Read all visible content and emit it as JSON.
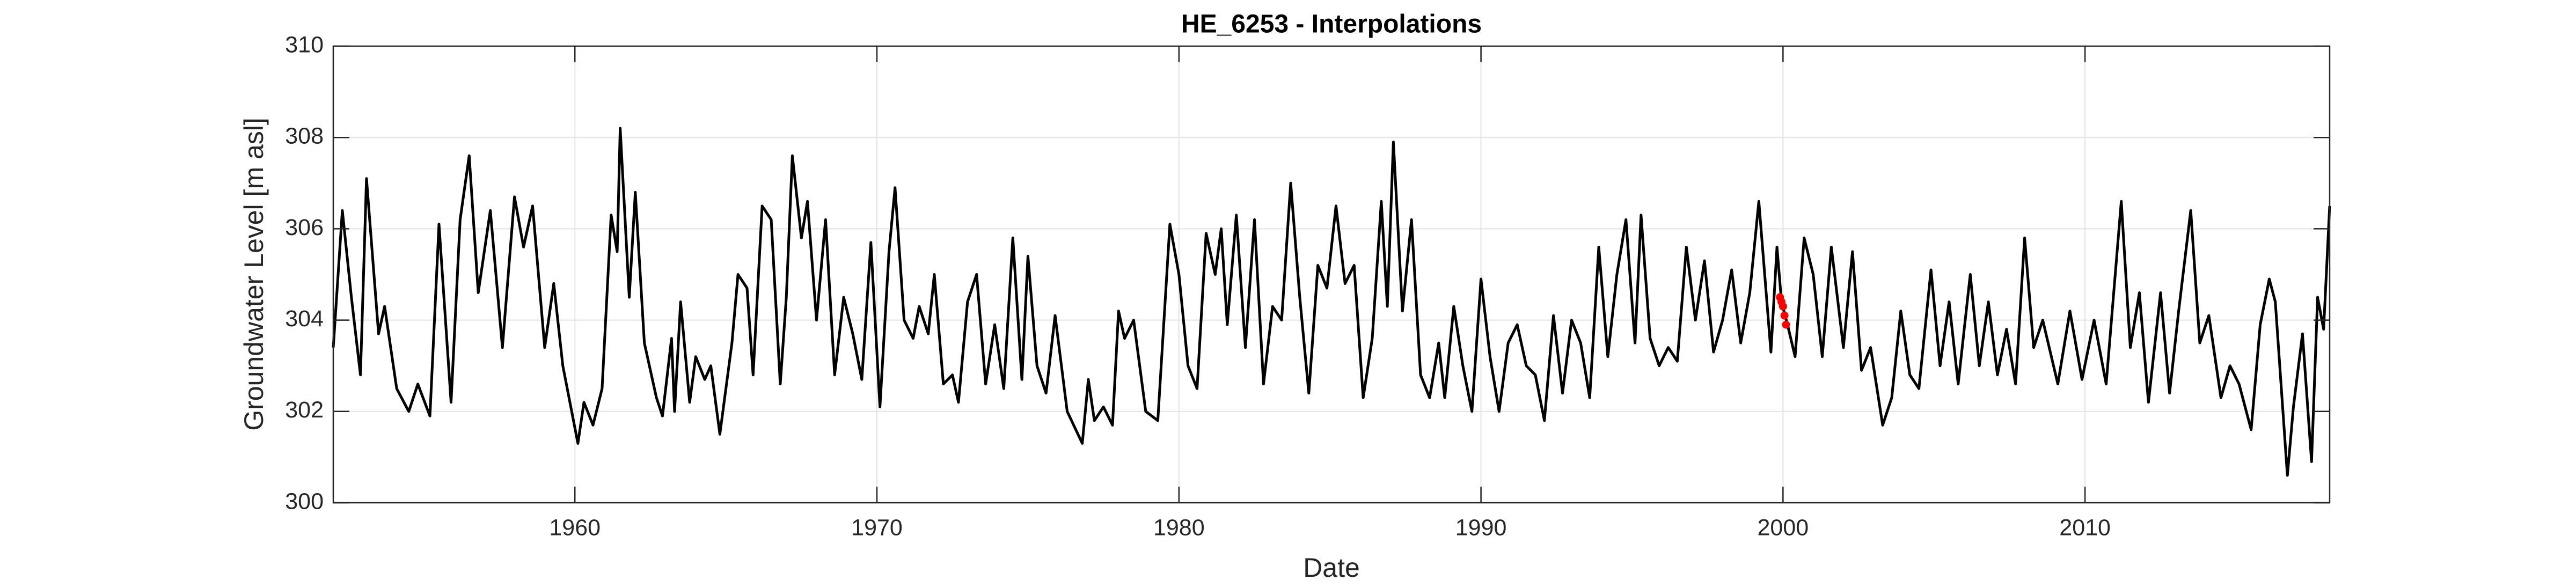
{
  "chart_data": {
    "type": "line",
    "title": "HE_6253 - Interpolations",
    "x_label": "Date",
    "y_label": "Groundwater Level [m asl]",
    "xlim": [
      1952.0,
      2018.1
    ],
    "xticks": [
      1960,
      1970,
      1980,
      1990,
      2000,
      2010
    ],
    "ylim": [
      300,
      310
    ],
    "yticks": [
      300,
      302,
      304,
      306,
      308,
      310
    ],
    "grid": true,
    "series": [
      {
        "color": "#000000",
        "style": "line",
        "x": [
          1952.0,
          1952.3,
          1952.6,
          1952.9,
          1953.1,
          1953.5,
          1953.7,
          1954.1,
          1954.5,
          1954.8,
          1955.2,
          1955.5,
          1955.9,
          1956.2,
          1956.5,
          1956.8,
          1957.2,
          1957.6,
          1958.0,
          1958.3,
          1958.6,
          1959.0,
          1959.3,
          1959.6,
          1960.1,
          1960.3,
          1960.6,
          1960.9,
          1961.2,
          1961.4,
          1961.5,
          1961.8,
          1962.0,
          1962.3,
          1962.7,
          1962.9,
          1963.2,
          1963.3,
          1963.5,
          1963.8,
          1964.0,
          1964.3,
          1964.5,
          1964.8,
          1965.2,
          1965.4,
          1965.7,
          1965.9,
          1966.2,
          1966.5,
          1966.8,
          1967.0,
          1967.2,
          1967.5,
          1967.7,
          1968.0,
          1968.3,
          1968.6,
          1968.9,
          1969.2,
          1969.5,
          1969.8,
          1970.1,
          1970.4,
          1970.6,
          1970.9,
          1971.2,
          1971.4,
          1971.7,
          1971.9,
          1972.2,
          1972.5,
          1972.7,
          1973.0,
          1973.3,
          1973.6,
          1973.9,
          1974.2,
          1974.5,
          1974.8,
          1975.0,
          1975.3,
          1975.6,
          1975.9,
          1976.3,
          1976.8,
          1977.0,
          1977.2,
          1977.5,
          1977.8,
          1978.0,
          1978.2,
          1978.5,
          1978.9,
          1979.3,
          1979.7,
          1980.0,
          1980.3,
          1980.6,
          1980.9,
          1981.2,
          1981.4,
          1981.6,
          1981.9,
          1982.2,
          1982.5,
          1982.8,
          1983.1,
          1983.4,
          1983.7,
          1984.0,
          1984.3,
          1984.6,
          1984.9,
          1985.2,
          1985.5,
          1985.8,
          1986.1,
          1986.4,
          1986.7,
          1986.9,
          1987.1,
          1987.4,
          1987.7,
          1988.0,
          1988.3,
          1988.6,
          1988.8,
          1989.1,
          1989.4,
          1989.7,
          1990.0,
          1990.3,
          1990.6,
          1990.9,
          1991.2,
          1991.5,
          1991.8,
          1992.1,
          1992.4,
          1992.7,
          1993.0,
          1993.3,
          1993.6,
          1993.9,
          1994.2,
          1994.5,
          1994.8,
          1995.1,
          1995.3,
          1995.6,
          1995.9,
          1996.2,
          1996.5,
          1996.8,
          1997.1,
          1997.4,
          1997.7,
          1998.0,
          1998.3,
          1998.6,
          1998.9,
          1999.2,
          1999.6,
          1999.8,
          1999.95,
          2000.15,
          2000.4,
          2000.7,
          2001.0,
          2001.3,
          2001.6,
          2002.0,
          2002.3,
          2002.6,
          2002.9,
          2003.3,
          2003.6,
          2003.9,
          2004.2,
          2004.5,
          2004.9,
          2005.2,
          2005.5,
          2005.8,
          2006.2,
          2006.5,
          2006.8,
          2007.1,
          2007.4,
          2007.7,
          2008.0,
          2008.3,
          2008.6,
          2009.1,
          2009.5,
          2009.9,
          2010.3,
          2010.7,
          2011.2,
          2011.5,
          2011.8,
          2012.1,
          2012.5,
          2012.8,
          2013.1,
          2013.5,
          2013.8,
          2014.1,
          2014.5,
          2014.8,
          2015.1,
          2015.5,
          2015.8,
          2016.1,
          2016.3,
          2016.7,
          2016.9,
          2017.2,
          2017.5,
          2017.7,
          2017.9,
          2018.1
        ],
        "values": [
          303.4,
          306.4,
          304.5,
          302.8,
          307.1,
          303.7,
          304.3,
          302.5,
          302.0,
          302.6,
          301.9,
          306.1,
          302.2,
          306.2,
          307.6,
          304.6,
          306.4,
          303.4,
          306.7,
          305.6,
          306.5,
          303.4,
          304.8,
          303.0,
          301.3,
          302.2,
          301.7,
          302.5,
          306.3,
          305.5,
          308.2,
          304.5,
          306.8,
          303.5,
          302.3,
          301.9,
          303.6,
          302.0,
          304.4,
          302.2,
          303.2,
          302.7,
          303.0,
          301.5,
          303.5,
          305.0,
          304.7,
          302.8,
          306.5,
          306.2,
          302.6,
          304.5,
          307.6,
          305.8,
          306.6,
          304.0,
          306.2,
          302.8,
          304.5,
          303.7,
          302.7,
          305.7,
          302.1,
          305.5,
          306.9,
          304.0,
          303.6,
          304.3,
          303.7,
          305.0,
          302.6,
          302.8,
          302.2,
          304.4,
          305.0,
          302.6,
          303.9,
          302.5,
          305.8,
          302.7,
          305.4,
          303.0,
          302.4,
          304.1,
          302.0,
          301.3,
          302.7,
          301.8,
          302.1,
          301.7,
          304.2,
          303.6,
          304.0,
          302.0,
          301.8,
          306.1,
          305.0,
          303.0,
          302.5,
          305.9,
          305.0,
          306.0,
          303.9,
          306.3,
          303.4,
          306.2,
          302.6,
          304.3,
          304.0,
          307.0,
          304.5,
          302.4,
          305.2,
          304.7,
          306.5,
          304.8,
          305.2,
          302.3,
          303.6,
          306.6,
          304.3,
          307.9,
          304.2,
          306.2,
          302.8,
          302.3,
          303.5,
          302.3,
          304.3,
          303.0,
          302.0,
          304.9,
          303.2,
          302.0,
          303.5,
          303.9,
          303.0,
          302.8,
          301.8,
          304.1,
          302.4,
          304.0,
          303.5,
          302.3,
          305.6,
          303.2,
          305.0,
          306.2,
          303.5,
          306.3,
          303.6,
          303.0,
          303.4,
          303.1,
          305.6,
          304.0,
          305.3,
          303.3,
          304.0,
          305.1,
          303.5,
          304.6,
          306.6,
          303.3,
          305.6,
          304.4,
          303.9,
          303.2,
          305.8,
          305.0,
          303.2,
          305.6,
          303.4,
          305.5,
          302.9,
          303.4,
          301.7,
          302.3,
          304.2,
          302.8,
          302.5,
          305.1,
          303.0,
          304.4,
          302.6,
          305.0,
          303.0,
          304.4,
          302.8,
          303.8,
          302.6,
          305.8,
          303.4,
          304.0,
          302.6,
          304.2,
          302.7,
          304.0,
          302.6,
          306.6,
          303.4,
          304.6,
          302.2,
          304.6,
          302.4,
          304.2,
          306.4,
          303.5,
          304.1,
          302.3,
          303.0,
          302.6,
          301.6,
          303.9,
          304.9,
          304.4,
          300.6,
          302.1,
          303.7,
          300.9,
          304.5,
          303.8,
          306.5
        ]
      },
      {
        "color": "#ff0000",
        "style": "markers",
        "x": [
          1999.9,
          1999.95,
          2000.0,
          2000.05,
          2000.1
        ],
        "values": [
          304.5,
          304.4,
          304.3,
          304.1,
          303.9
        ]
      }
    ]
  }
}
